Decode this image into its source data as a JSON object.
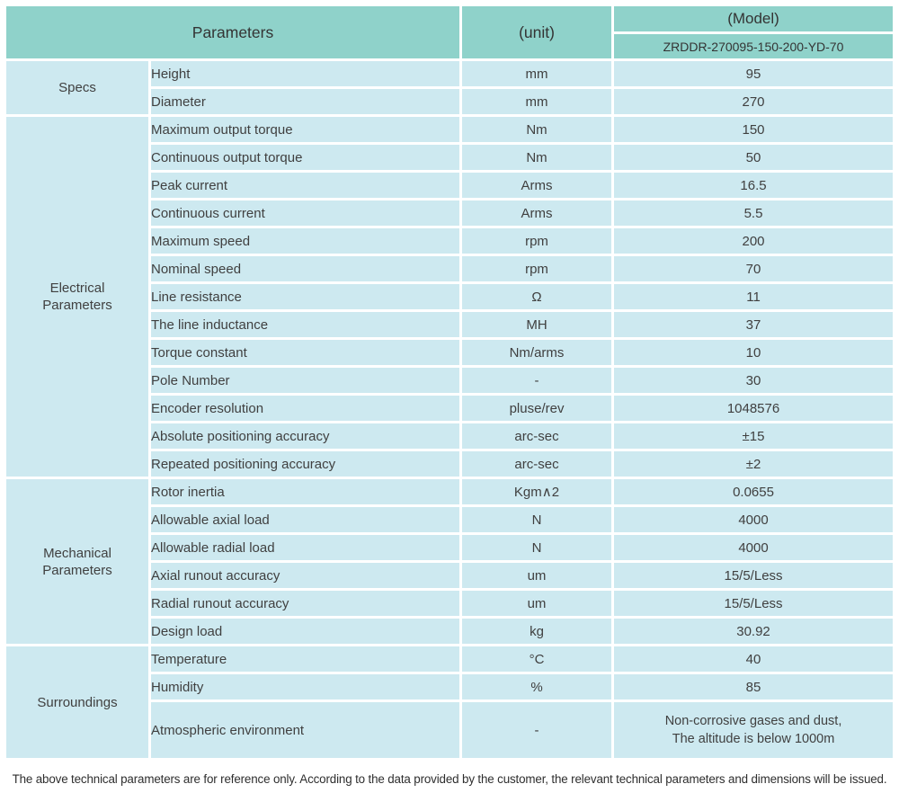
{
  "colors": {
    "header_bg": "#8fd2ca",
    "cell_bg": "#cde9f0",
    "border": "#ffffff",
    "text": "#404040"
  },
  "table": {
    "header": {
      "parameters_label": "Parameters",
      "unit_label": "(unit)",
      "model_label": "(Model)",
      "model_value": "ZRDDR-270095-150-200-YD-70"
    },
    "sections": [
      {
        "id": "specs",
        "group": "Specs",
        "rows": [
          [
            "Height",
            "mm",
            "95"
          ],
          [
            "Diameter",
            "mm",
            "270"
          ]
        ]
      },
      {
        "id": "electrical-parameters",
        "group": "Electrical\nParameters",
        "rows": [
          [
            "Maximum output torque",
            "Nm",
            "150"
          ],
          [
            "Continuous output torque",
            "Nm",
            "50"
          ],
          [
            "Peak current",
            "Arms",
            "16.5"
          ],
          [
            "Continuous current",
            "Arms",
            "5.5"
          ],
          [
            "Maximum speed",
            "rpm",
            "200"
          ],
          [
            "Nominal speed",
            "rpm",
            "70"
          ],
          [
            "Line resistance",
            "Ω",
            "11"
          ],
          [
            "The line inductance",
            "MH",
            "37"
          ],
          [
            "Torque constant",
            "Nm/arms",
            "10"
          ],
          [
            "Pole Number",
            "-",
            "30"
          ],
          [
            "Encoder resolution",
            "pluse/rev",
            "1048576"
          ],
          [
            "Absolute positioning accuracy",
            "arc-sec",
            "±15"
          ],
          [
            "Repeated positioning accuracy",
            "arc-sec",
            "±2"
          ]
        ]
      },
      {
        "id": "mechanical-parameters",
        "group": "Mechanical\nParameters",
        "rows": [
          [
            "Rotor inertia",
            "Kgm∧2",
            "0.0655"
          ],
          [
            "Allowable axial load",
            "N",
            "4000"
          ],
          [
            "Allowable radial load",
            "N",
            "4000"
          ],
          [
            "Axial runout accuracy",
            "um",
            "15/5/Less"
          ],
          [
            "Radial runout accuracy",
            "um",
            "15/5/Less"
          ],
          [
            "Design load",
            "kg",
            "30.92"
          ]
        ]
      },
      {
        "id": "surroundings",
        "group": "Surroundings",
        "rows": [
          [
            "Temperature",
            "°C",
            "40"
          ],
          [
            "Humidity",
            "%",
            "85"
          ],
          [
            "Atmospheric environment",
            "-",
            "Non-corrosive gases and dust,\nThe altitude is below 1000m"
          ]
        ]
      }
    ],
    "footnote": "The above technical parameters are for reference only. According to the data provided by the customer, the relevant technical parameters and dimensions will be issued."
  }
}
